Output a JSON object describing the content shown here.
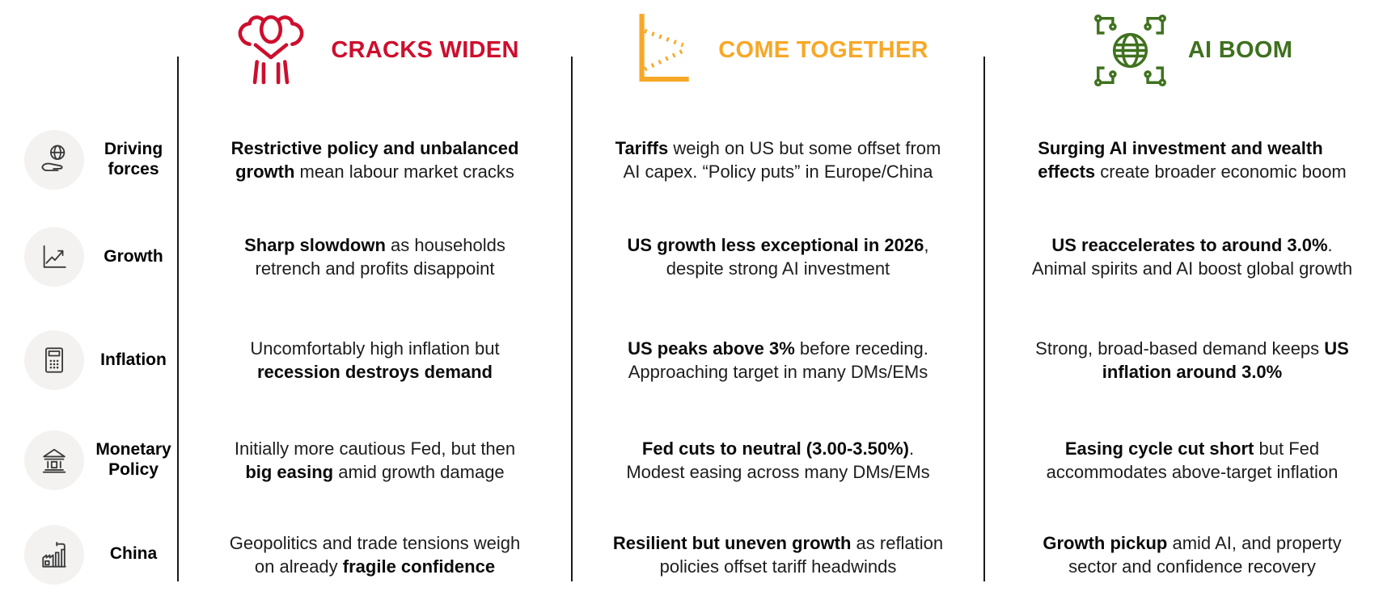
{
  "scenarios": [
    {
      "name": "CRACKS WIDEN",
      "color": "#CE0E2D",
      "icon": "stress-head-in-hands-icon"
    },
    {
      "name": "COME TOGETHER",
      "color": "#F7A827",
      "icon": "converging-lines-chart-icon"
    },
    {
      "name": "AI BOOM",
      "color": "#3F711F",
      "icon": "globe-circuit-icon"
    }
  ],
  "colors": {
    "red": "#CE0E2D",
    "amber": "#F7A827",
    "green": "#3F711F",
    "label_circle_bg": "#F3F2F1",
    "row_icon_stroke": "#3A3A3A",
    "text": "#1D1D1D",
    "divider": "#1A1A1A"
  },
  "rows": [
    {
      "label": "Driving forces",
      "icon": "hand-globe-icon",
      "cells": [
        [
          [
            {
              "t": "Restrictive policy and unbalanced",
              "b": true
            }
          ],
          [
            {
              "t": "growth",
              "b": true
            },
            {
              "t": " mean labour market cracks"
            }
          ]
        ],
        [
          [
            {
              "t": "Tariffs",
              "b": true
            },
            {
              "t": " weigh on US but some offset from"
            }
          ],
          [
            {
              "t": "AI capex. “Policy puts” in Europe/China"
            }
          ]
        ],
        [
          [
            {
              "t": "Surging AI investment and wealth",
              "b": true
            }
          ],
          [
            {
              "t": "effects",
              "b": true
            },
            {
              "t": " create broader economic boom"
            }
          ]
        ]
      ]
    },
    {
      "label": "Growth",
      "icon": "line-chart-up-icon",
      "cells": [
        [
          [
            {
              "t": "Sharp slowdown",
              "b": true
            },
            {
              "t": " as households"
            }
          ],
          [
            {
              "t": "retrench and profits disappoint"
            }
          ]
        ],
        [
          [
            {
              "t": "US growth less exceptional in 2026",
              "b": true
            },
            {
              "t": ","
            }
          ],
          [
            {
              "t": "despite strong AI investment"
            }
          ]
        ],
        [
          [
            {
              "t": "US reaccelerates to around 3.0%",
              "b": true
            },
            {
              "t": "."
            }
          ],
          [
            {
              "t": "Animal spirits and AI boost global growth"
            }
          ]
        ]
      ]
    },
    {
      "label": "Inflation",
      "icon": "calculator-icon",
      "cells": [
        [
          [
            {
              "t": "Uncomfortably high inflation but"
            }
          ],
          [
            {
              "t": "recession destroys demand",
              "b": true
            }
          ]
        ],
        [
          [
            {
              "t": "US peaks above 3%",
              "b": true
            },
            {
              "t": " before receding."
            }
          ],
          [
            {
              "t": "Approaching target in many DMs/EMs"
            }
          ]
        ],
        [
          [
            {
              "t": "Strong, broad-based demand keeps "
            },
            {
              "t": "US",
              "b": true
            }
          ],
          [
            {
              "t": "inflation around 3.0%",
              "b": true
            }
          ]
        ]
      ]
    },
    {
      "label": "Monetary Policy",
      "icon": "bank-icon",
      "cells": [
        [
          [
            {
              "t": "Initially more cautious Fed, but then"
            }
          ],
          [
            {
              "t": "big easing",
              "b": true
            },
            {
              "t": " amid growth damage"
            }
          ]
        ],
        [
          [
            {
              "t": "Fed cuts to neutral (3.00-3.50%)",
              "b": true
            },
            {
              "t": "."
            }
          ],
          [
            {
              "t": "Modest easing across many DMs/EMs"
            }
          ]
        ],
        [
          [
            {
              "t": "Easing cycle cut short",
              "b": true
            },
            {
              "t": " but Fed"
            }
          ],
          [
            {
              "t": "accommodates above-target inflation"
            }
          ]
        ]
      ]
    },
    {
      "label": "China",
      "icon": "factory-icon",
      "cells": [
        [
          [
            {
              "t": "Geopolitics and trade tensions weigh"
            }
          ],
          [
            {
              "t": "on already "
            },
            {
              "t": "fragile confidence",
              "b": true
            }
          ]
        ],
        [
          [
            {
              "t": "Resilient but uneven growth",
              "b": true
            },
            {
              "t": " as reflation"
            }
          ],
          [
            {
              "t": "policies offset tariff headwinds"
            }
          ]
        ],
        [
          [
            {
              "t": "Growth pickup",
              "b": true
            },
            {
              "t": " amid AI, and property"
            }
          ],
          [
            {
              "t": "sector and confidence recovery"
            }
          ]
        ]
      ]
    }
  ]
}
